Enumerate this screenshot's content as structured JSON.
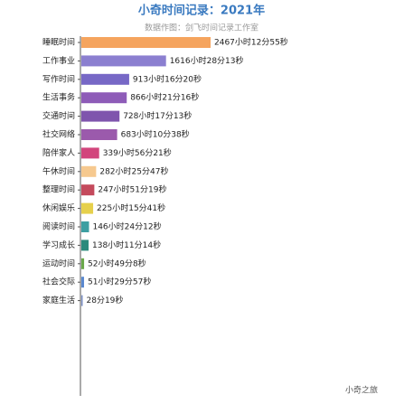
{
  "chart_data": {
    "type": "bar",
    "orientation": "horizontal",
    "title": "小奇时间记录：2021年",
    "subtitle": "数据作图：剑飞时间记录工作室",
    "watermark": "小奇之旅",
    "categories": [
      "睡眠时间",
      "工作事业",
      "写作时间",
      "生活事务",
      "交通时间",
      "社交网络",
      "陪伴家人",
      "午休时间",
      "整理时间",
      "休闲娱乐",
      "阅读时间",
      "学习成长",
      "运动时间",
      "社会交际",
      "家庭生活"
    ],
    "values": [
      2467.2153,
      1616.4703,
      913.2722,
      866.3544,
      728.2869,
      683.1772,
      339.9392,
      282.4297,
      247.8553,
      225.2614,
      146.4033,
      138.1872,
      52.8189,
      51.4992,
      0.4719
    ],
    "value_labels": [
      "2467小时12分55秒",
      "1616小时28分13秒",
      "913小时16分20秒",
      "866小时21分16秒",
      "728小时17分13秒",
      "683小时10分38秒",
      "339小时56分21秒",
      "282小时25分47秒",
      "247小时51分19秒",
      "225小时15分41秒",
      "146小时24分12秒",
      "138小时11分14秒",
      "52小时49分8秒",
      "51小时29分57秒",
      "28分19秒"
    ],
    "colors": [
      "#f5a45e",
      "#8b7fd0",
      "#7768c6",
      "#8e5cb8",
      "#7f55ad",
      "#9b5aac",
      "#d2457c",
      "#f6c98f",
      "#c44a5c",
      "#e6d04c",
      "#3d9fa2",
      "#2b8a7c",
      "#6aa84a",
      "#5a88cf",
      "#7b8fc4"
    ]
  }
}
